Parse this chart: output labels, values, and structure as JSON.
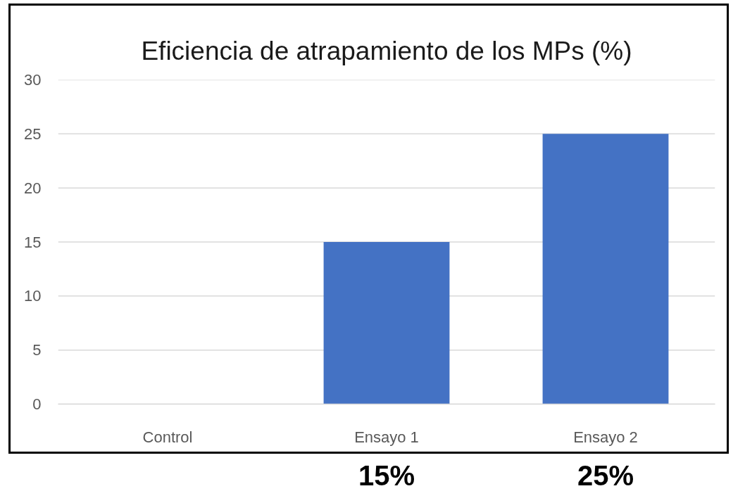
{
  "chart_data": {
    "type": "bar",
    "title": "Eficiencia de atrapamiento de los MPs (%)",
    "categories": [
      "Control",
      "Ensayo 1",
      "Ensayo 2"
    ],
    "values": [
      0,
      15,
      25
    ],
    "color": "#4472c4",
    "value_labels": [
      null,
      "15%",
      "25%"
    ],
    "ylim": [
      0,
      30
    ],
    "yticks": [
      0,
      5,
      10,
      15,
      20,
      25,
      30
    ],
    "grid": "y"
  }
}
